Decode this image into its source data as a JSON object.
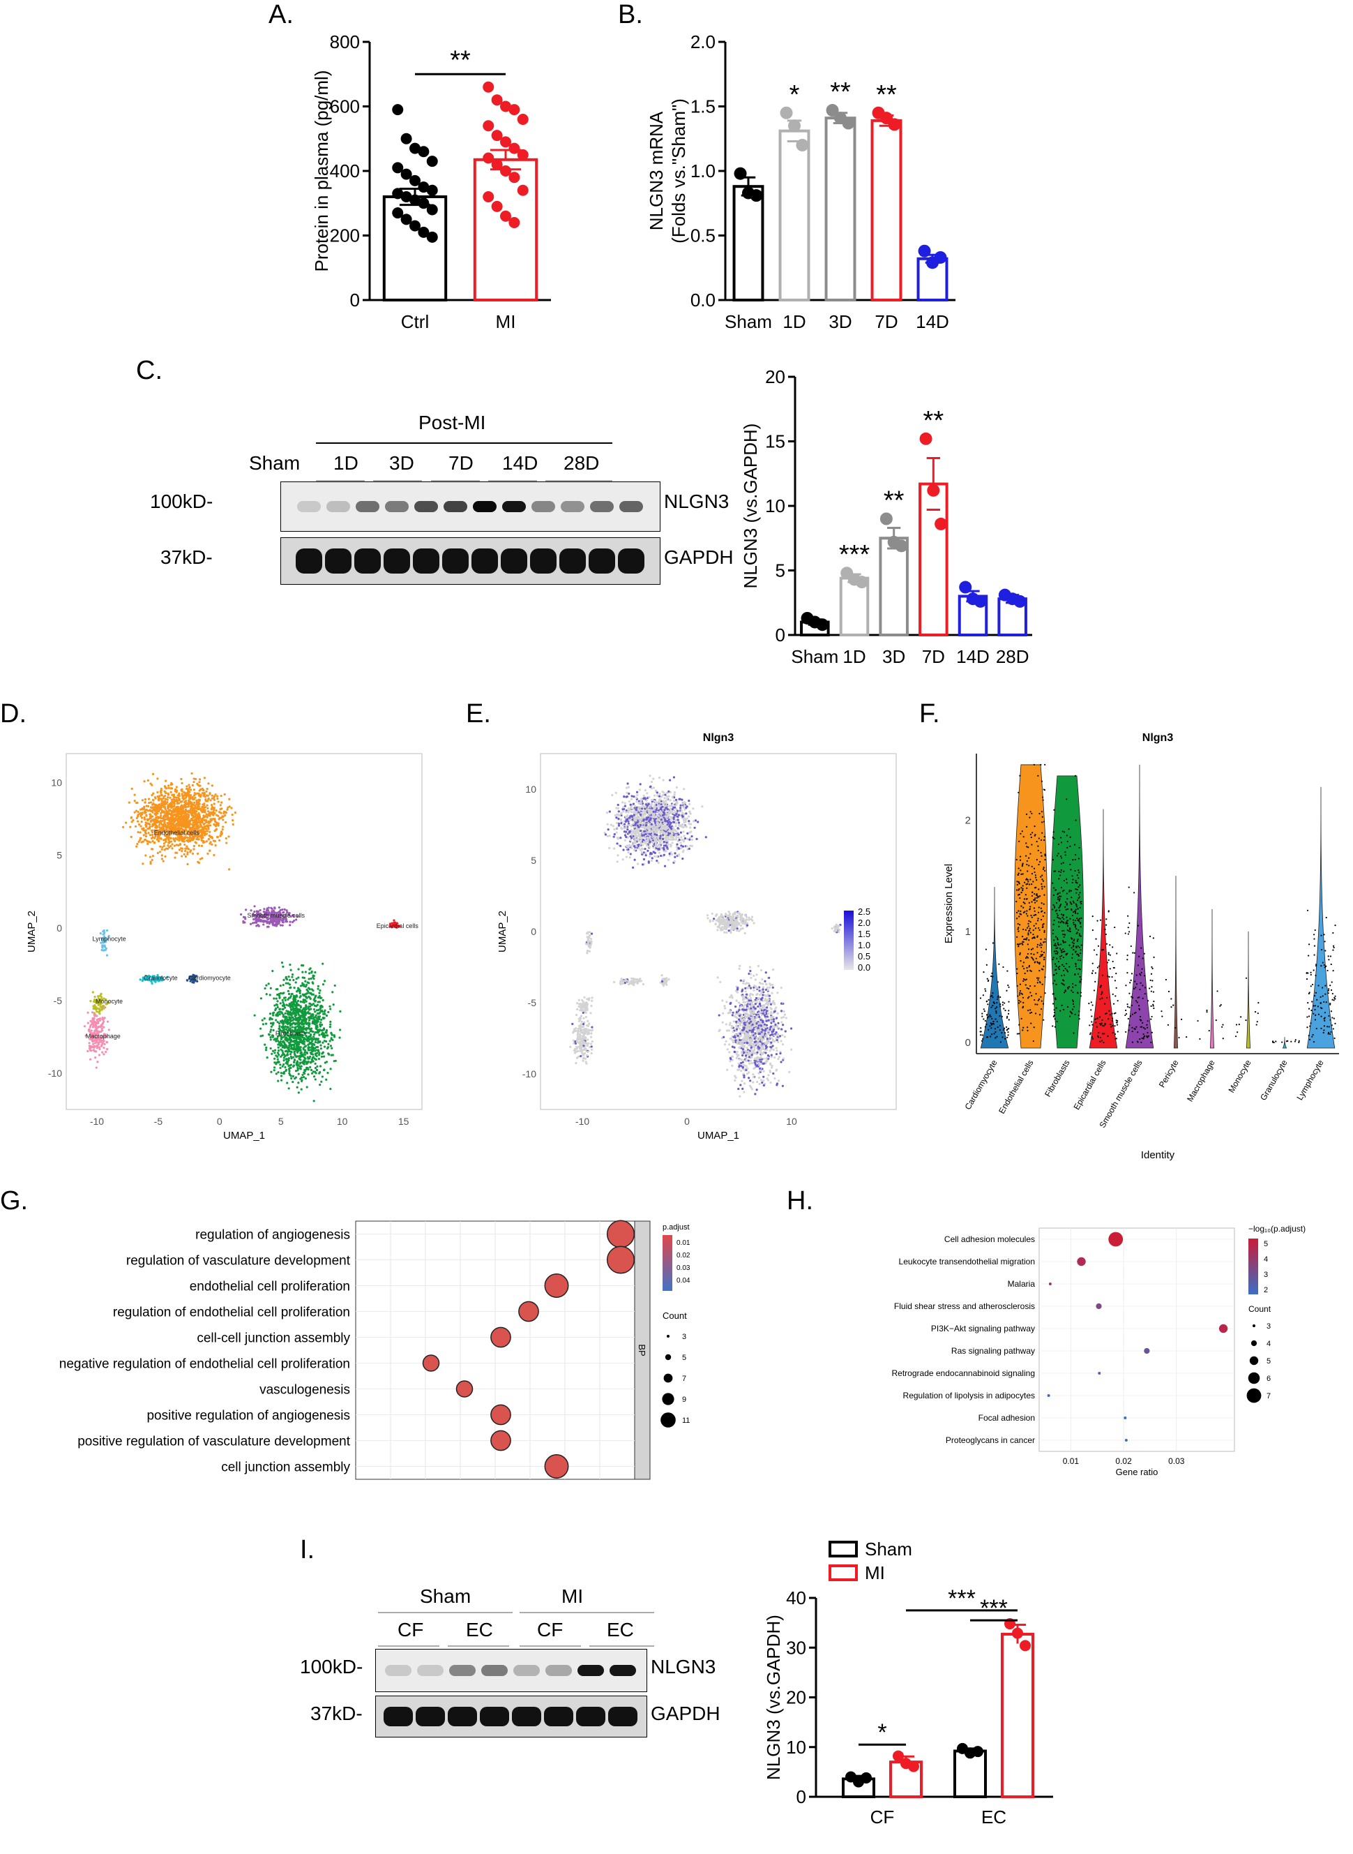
{
  "panel_labels": {
    "A": "A.",
    "B": "B.",
    "C": "C.",
    "D": "D.",
    "E": "E.",
    "F": "F.",
    "G": "G.",
    "H": "H.",
    "I": "I."
  },
  "colors": {
    "black": "#000000",
    "gray": "#8c8c8c",
    "lightgray": "#b0b0b0",
    "red": "#ee1c25",
    "blue": "#1f1fe0",
    "orange": "#f7941d",
    "green": "#119a3d",
    "umap_gray": "#cfcfcf",
    "umap_purple": "#6a5acd"
  },
  "blot_c": {
    "postmi": "Post-MI",
    "lanes": [
      "Sham",
      "1D",
      "3D",
      "7D",
      "14D",
      "28D"
    ],
    "marker_top": "100kD-",
    "marker_bottom": "37kD-",
    "band_top": "NLGN3",
    "band_bottom": "GAPDH",
    "top_intensity": [
      0.15,
      0.2,
      0.55,
      0.5,
      0.7,
      0.75,
      1.0,
      0.95,
      0.45,
      0.4,
      0.55,
      0.6
    ]
  },
  "blot_i": {
    "groups": [
      "Sham",
      "MI"
    ],
    "lanes": [
      "CF",
      "EC",
      "CF",
      "EC"
    ],
    "marker_top": "100kD-",
    "marker_bottom": "37kD-",
    "band_top": "NLGN3",
    "band_bottom": "GAPDH",
    "top_intensity": [
      0.15,
      0.15,
      0.45,
      0.5,
      0.25,
      0.3,
      0.95,
      0.95
    ]
  },
  "umap_d": {
    "xlabel": "UMAP_1",
    "ylabel": "UMAP_2",
    "xticks": [
      "-10",
      "-5",
      "0",
      "5",
      "10",
      "15"
    ],
    "yticks": [
      "-10",
      "-5",
      "0",
      "5",
      "10"
    ],
    "clusters": [
      "Endothelial cells",
      "Smooth muscle cells",
      "Epicardial cells",
      "Lymphocyte",
      "Granulocyte",
      "Cardiomyocyte",
      "Monocyte",
      "Macrophage",
      "Fibroblasts"
    ]
  },
  "umap_e": {
    "title": "Nlgn3",
    "xlabel": "UMAP_1",
    "ylabel": "UMAP_2",
    "xticks": [
      "-10",
      "0",
      "10"
    ],
    "yticks": [
      "-10",
      "-5",
      "0",
      "5",
      "10"
    ],
    "legend": [
      "2.5",
      "2.0",
      "1.5",
      "1.0",
      "0.5",
      "0.0"
    ]
  },
  "chart_data": [
    {
      "type": "bar",
      "ylabel": "Protein in plasma (pg/ml)",
      "ylim": [
        0,
        800
      ],
      "yticks": [
        "0",
        "200",
        "400",
        "600",
        "800"
      ],
      "categories": [
        "Ctrl",
        "MI"
      ],
      "values": [
        320,
        435
      ],
      "sem": [
        25,
        30
      ],
      "colors": [
        "#000000",
        "#ee1c25"
      ],
      "points": [
        [
          590,
          500,
          470,
          460,
          430,
          410,
          390,
          370,
          350,
          340,
          330,
          320,
          310,
          300,
          280,
          270,
          250,
          230,
          210,
          195
        ],
        [
          660,
          620,
          600,
          590,
          560,
          540,
          510,
          490,
          470,
          450,
          440,
          420,
          400,
          380,
          340,
          320,
          290,
          260,
          240
        ]
      ],
      "sig": "**"
    },
    {
      "type": "bar",
      "ylabel": "NLGN3 mRNA\n(Folds vs.\"Sham\")",
      "ylim": [
        0,
        2.0
      ],
      "yticks": [
        "0.0",
        "0.5",
        "1.0",
        "1.5",
        "2.0"
      ],
      "categories": [
        "Sham",
        "1D",
        "3D",
        "7D",
        "14D"
      ],
      "values": [
        0.88,
        1.31,
        1.41,
        1.39,
        0.32
      ],
      "sem": [
        0.07,
        0.08,
        0.04,
        0.04,
        0.03
      ],
      "colors": [
        "#000000",
        "#b0b0b0",
        "#8c8c8c",
        "#ee1c25",
        "#1f1fe0"
      ],
      "points": [
        [
          0.98,
          0.83,
          0.81
        ],
        [
          1.45,
          1.35,
          1.2
        ],
        [
          1.47,
          1.41,
          1.37
        ],
        [
          1.45,
          1.41,
          1.36
        ],
        [
          0.38,
          0.29,
          0.33
        ]
      ],
      "sig": [
        "",
        "*",
        "**",
        "**",
        ""
      ]
    },
    {
      "type": "bar",
      "ylabel": "NLGN3 (vs.GAPDH)",
      "ylim": [
        0,
        20
      ],
      "yticks": [
        "0",
        "5",
        "10",
        "15",
        "20"
      ],
      "categories": [
        "Sham",
        "1D",
        "3D",
        "7D",
        "14D",
        "28D"
      ],
      "values": [
        1.0,
        4.4,
        7.5,
        11.7,
        3.0,
        2.8
      ],
      "sem": [
        0.2,
        0.3,
        0.8,
        2.0,
        0.4,
        0.3
      ],
      "colors": [
        "#000000",
        "#b0b0b0",
        "#8c8c8c",
        "#ee1c25",
        "#1f1fe0",
        "#1f1fe0"
      ],
      "points": [
        [
          1.3,
          1.0,
          0.8
        ],
        [
          4.8,
          4.3,
          4.1
        ],
        [
          9.0,
          7.2,
          6.9
        ],
        [
          15.2,
          11.2,
          8.6
        ],
        [
          3.7,
          2.8,
          2.6
        ],
        [
          3.1,
          2.8,
          2.6
        ]
      ],
      "sig": [
        "",
        "***",
        "**",
        "**",
        "",
        ""
      ]
    },
    {
      "type": "scatter",
      "title": "Nlgn3",
      "xlabel": "Identity",
      "ylabel": "Expression Level",
      "yticks": [
        "0",
        "1",
        "2"
      ],
      "categories": [
        "Cardiomyocyte",
        "Endothelial cells",
        "Fibroblasts",
        "Epicardial cells",
        "Smooth muscle cells",
        "Pericyte",
        "Macrophage",
        "Monocyte",
        "Granulocyte",
        "Lymphocyte"
      ],
      "max": [
        1.4,
        2.5,
        2.4,
        2.1,
        2.5,
        1.5,
        1.2,
        1.0,
        0.05,
        2.3
      ],
      "colors": [
        "#1f77b4",
        "#f7941d",
        "#119a3d",
        "#ee1c25",
        "#8e44ad",
        "#8c564b",
        "#e377c2",
        "#bcbd22",
        "#17becf",
        "#4aa3df"
      ]
    },
    {
      "type": "scatter",
      "legend_title": "p.adjust",
      "legend_ticks": [
        "0.01",
        "0.02",
        "0.03",
        "0.04"
      ],
      "count_title": "Count",
      "count_ticks": [
        "3",
        "5",
        "7",
        "9",
        "11"
      ],
      "facet": "BP",
      "terms": [
        "regulation of angiogenesis",
        "regulation of vasculature development",
        "endothelial cell proliferation",
        "regulation of endothelial cell proliferation",
        "cell-cell junction assembly",
        "negative regulation of endothelial cell proliferation",
        "vasculogenesis",
        "positive regulation of angiogenesis",
        "positive regulation of vasculature development",
        "cell junction assembly"
      ],
      "x": [
        0.95,
        0.95,
        0.72,
        0.62,
        0.52,
        0.27,
        0.39,
        0.52,
        0.52,
        0.72
      ],
      "count": [
        11,
        11,
        9,
        7,
        7,
        5,
        5,
        7,
        7,
        9
      ]
    },
    {
      "type": "scatter",
      "xlabel": "Gene ratio",
      "xticks": [
        "0.01",
        "0.02",
        "0.03"
      ],
      "legend_title": "−log₁₀(p.adjust)",
      "legend_ticks": [
        "5",
        "4",
        "3",
        "2"
      ],
      "count_title": "Count",
      "count_ticks": [
        "3",
        "4",
        "5",
        "6",
        "7"
      ],
      "terms": [
        "Cell adhesion molecules",
        "Leukocyte transendothelial migration",
        "Malaria",
        "Fluid shear stress and atherosclerosis",
        "PI3K−Akt signaling pathway",
        "Ras signaling pathway",
        "Retrograde endocannabinoid signaling",
        "Regulation of lipolysis in adipocytes",
        "Focal adhesion",
        "Proteoglycans in cancer"
      ],
      "x": [
        0.0185,
        0.012,
        0.0061,
        0.0153,
        0.0389,
        0.0244,
        0.0154,
        0.0058,
        0.0203,
        0.0205
      ],
      "count": [
        7,
        5,
        3,
        4,
        5,
        4,
        3,
        3,
        3,
        3
      ],
      "neglog": [
        5.3,
        4.6,
        3.6,
        3.2,
        4.8,
        2.6,
        1.8,
        1.5,
        1.3,
        1.3
      ]
    },
    {
      "type": "bar",
      "ylabel": "NLGN3 (vs.GAPDH)",
      "ylim": [
        0,
        40
      ],
      "yticks": [
        "0",
        "10",
        "20",
        "30",
        "40"
      ],
      "categories": [
        "CF",
        "EC"
      ],
      "series": [
        {
          "name": "Sham",
          "values": [
            3.6,
            9.2
          ],
          "sem": [
            0.6,
            0.5
          ],
          "color": "#000000",
          "points": [
            [
              4.0,
              3.0,
              3.8
            ],
            [
              9.7,
              8.8,
              9.1
            ]
          ]
        },
        {
          "name": "MI",
          "values": [
            7.0,
            32.7
          ],
          "sem": [
            1.1,
            1.9
          ],
          "color": "#ee1c25",
          "points": [
            [
              8.2,
              6.7,
              6.1
            ],
            [
              34.8,
              32.9,
              30.4
            ]
          ]
        }
      ],
      "sig": [
        "*",
        "***",
        "***"
      ]
    }
  ]
}
